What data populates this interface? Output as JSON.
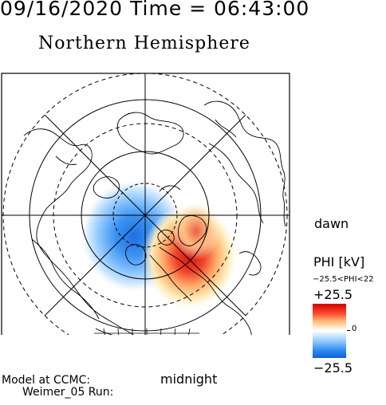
{
  "header": {
    "date_time": "09/16/2020 Time = 06:43:00",
    "hemisphere": "Northern Hemisphere"
  },
  "map": {
    "labels": {
      "dawn": "dawn",
      "midnight": "midnight"
    },
    "colors": {
      "positive": "#d40000",
      "negative": "#0a5fd8",
      "neutral": "#ffffff"
    }
  },
  "colorbar": {
    "title": "PHI [kV]",
    "range_text": "−25.5<PHI<22",
    "max_label": "+25.5",
    "zero_label": "0",
    "min_label": "−25.5"
  },
  "footer": {
    "model_line1": "Model at CCMC:",
    "model_line2": "Weimer_05 Run:"
  }
}
